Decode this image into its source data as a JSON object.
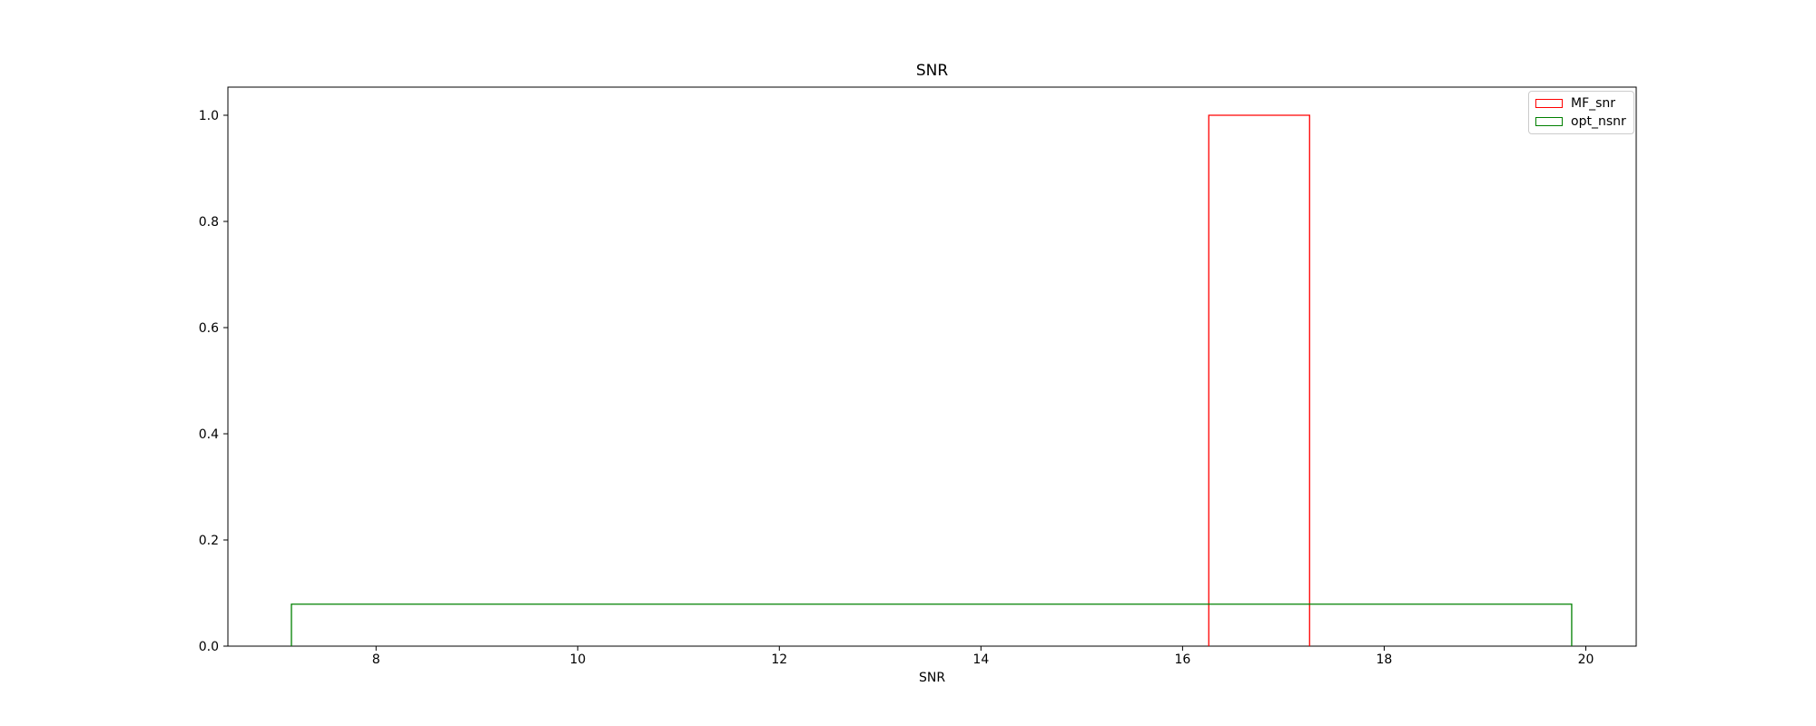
{
  "chart_data": {
    "type": "histogram-step",
    "title": "SNR",
    "xlabel": "SNR",
    "ylabel": "",
    "grid": false,
    "background_color": "#ffffff",
    "axis_color": "#000000",
    "xlim": [
      6.53,
      20.5
    ],
    "ylim": [
      0,
      1.053
    ],
    "xticks": [
      8,
      10,
      12,
      14,
      16,
      18,
      20
    ],
    "xtick_labels": [
      "8",
      "10",
      "12",
      "14",
      "16",
      "18",
      "20"
    ],
    "yticks": [
      0.0,
      0.2,
      0.4,
      0.6,
      0.8,
      1.0
    ],
    "ytick_labels": [
      "0.0",
      "0.2",
      "0.4",
      "0.6",
      "0.8",
      "1.0"
    ],
    "series": [
      {
        "name": "MF_snr",
        "color": "#ff0000",
        "bin_start": 16.26,
        "bin_end": 17.26,
        "height": 1.0
      },
      {
        "name": "opt_nsnr",
        "color": "#008000",
        "bin_start": 7.16,
        "bin_end": 19.86,
        "height": 0.079
      }
    ],
    "legend": {
      "position": "upper right",
      "entries": [
        {
          "label": "MF_snr",
          "color": "#ff0000"
        },
        {
          "label": "opt_nsnr",
          "color": "#008000"
        }
      ]
    }
  }
}
